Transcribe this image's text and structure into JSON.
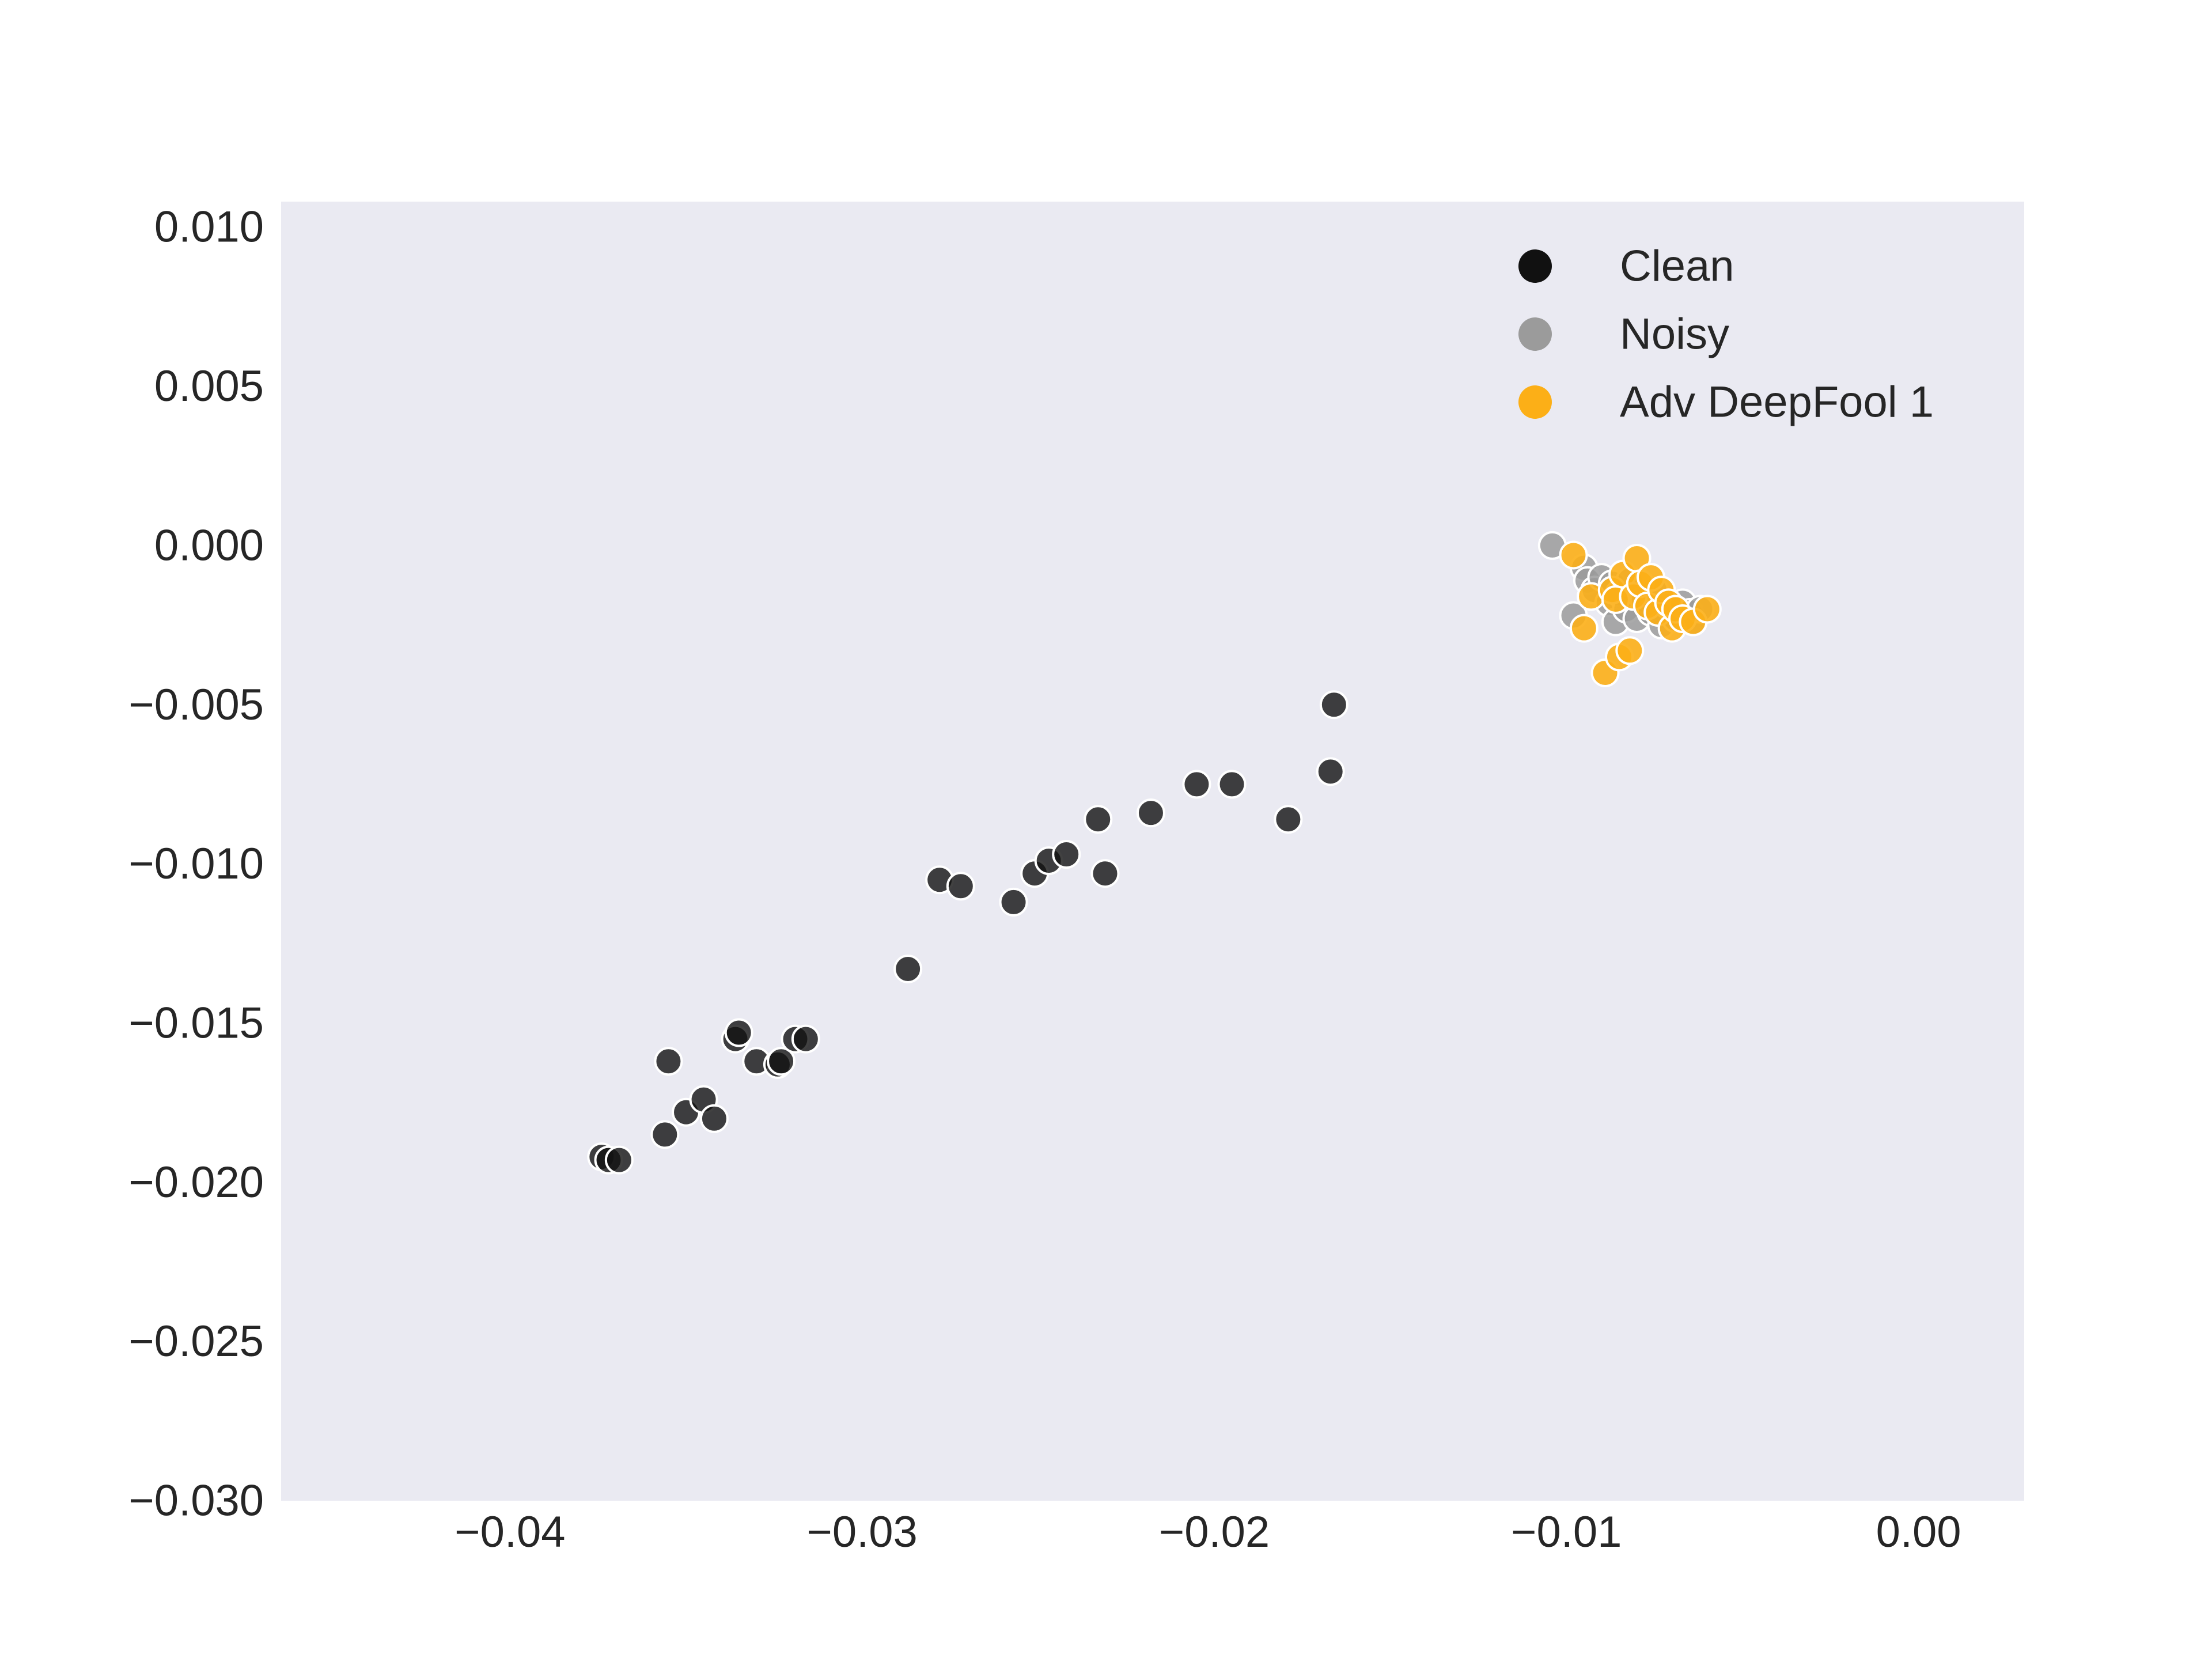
{
  "chart_data": {
    "type": "scatter",
    "title": "",
    "xlabel": "",
    "ylabel": "",
    "xlim": [
      -0.0465,
      0.003
    ],
    "ylim": [
      -0.03,
      0.0108
    ],
    "grid": false,
    "background": "#eaeaf2",
    "legend_position": "top-right",
    "x_ticks": [
      {
        "value": -0.04,
        "label": "−0.04"
      },
      {
        "value": -0.03,
        "label": "−0.03"
      },
      {
        "value": -0.02,
        "label": "−0.02"
      },
      {
        "value": -0.01,
        "label": "−0.01"
      },
      {
        "value": 0.0,
        "label": "0.00"
      }
    ],
    "y_ticks": [
      {
        "value": 0.01,
        "label": "0.010"
      },
      {
        "value": 0.005,
        "label": "0.005"
      },
      {
        "value": 0.0,
        "label": "0.000"
      },
      {
        "value": -0.005,
        "label": "−0.005"
      },
      {
        "value": -0.01,
        "label": "−0.010"
      },
      {
        "value": -0.015,
        "label": "−0.015"
      },
      {
        "value": -0.02,
        "label": "−0.020"
      },
      {
        "value": -0.025,
        "label": "−0.025"
      },
      {
        "value": -0.03,
        "label": "−0.030"
      }
    ],
    "series": [
      {
        "name": "Clean",
        "color": "#111111",
        "opacity": 0.8,
        "points": [
          [
            -0.0374,
            -0.0192
          ],
          [
            -0.0372,
            -0.0193
          ],
          [
            -0.0369,
            -0.0193
          ],
          [
            -0.0356,
            -0.0185
          ],
          [
            -0.0355,
            -0.0162
          ],
          [
            -0.035,
            -0.0178
          ],
          [
            -0.0345,
            -0.0174
          ],
          [
            -0.0342,
            -0.018
          ],
          [
            -0.0336,
            -0.0155
          ],
          [
            -0.0335,
            -0.0153
          ],
          [
            -0.033,
            -0.0162
          ],
          [
            -0.0324,
            -0.0163
          ],
          [
            -0.0323,
            -0.0162
          ],
          [
            -0.0319,
            -0.0155
          ],
          [
            -0.0316,
            -0.0155
          ],
          [
            -0.0287,
            -0.0133
          ],
          [
            -0.0278,
            -0.0105
          ],
          [
            -0.0272,
            -0.0107
          ],
          [
            -0.0257,
            -0.0112
          ],
          [
            -0.0251,
            -0.0103
          ],
          [
            -0.0247,
            -0.0099
          ],
          [
            -0.0242,
            -0.0097
          ],
          [
            -0.0233,
            -0.0086
          ],
          [
            -0.0231,
            -0.0103
          ],
          [
            -0.0218,
            -0.0084
          ],
          [
            -0.0205,
            -0.0075
          ],
          [
            -0.0195,
            -0.0075
          ],
          [
            -0.0179,
            -0.0086
          ],
          [
            -0.0167,
            -0.0071
          ],
          [
            -0.0166,
            -0.005
          ]
        ]
      },
      {
        "name": "Noisy",
        "color": "#9b9b9b",
        "opacity": 0.85,
        "points": [
          [
            -0.0104,
            0.0
          ],
          [
            -0.0098,
            -0.0022
          ],
          [
            -0.0095,
            -0.0007
          ],
          [
            -0.0094,
            -0.0011
          ],
          [
            -0.0092,
            -0.0014
          ],
          [
            -0.009,
            -0.001
          ],
          [
            -0.0088,
            -0.0018
          ],
          [
            -0.0087,
            -0.0012
          ],
          [
            -0.0086,
            -0.0024
          ],
          [
            -0.0085,
            -0.0015
          ],
          [
            -0.0083,
            -0.002
          ],
          [
            -0.0082,
            -0.0011
          ],
          [
            -0.008,
            -0.0023
          ],
          [
            -0.0078,
            -0.0017
          ],
          [
            -0.0076,
            -0.0021
          ],
          [
            -0.0075,
            -0.0014
          ],
          [
            -0.0073,
            -0.0025
          ],
          [
            -0.0071,
            -0.0019
          ],
          [
            -0.0069,
            -0.0023
          ],
          [
            -0.0067,
            -0.0018
          ],
          [
            -0.0065,
            -0.0021
          ],
          [
            -0.0064,
            -0.0024
          ],
          [
            -0.0062,
            -0.002
          ]
        ]
      },
      {
        "name": "Adv DeepFool 1",
        "color": "#fcaf17",
        "opacity": 0.9,
        "points": [
          [
            -0.0098,
            -0.0003
          ],
          [
            -0.0095,
            -0.0026
          ],
          [
            -0.0093,
            -0.0016
          ],
          [
            -0.0089,
            -0.004
          ],
          [
            -0.0087,
            -0.0014
          ],
          [
            -0.0086,
            -0.0017
          ],
          [
            -0.0085,
            -0.0035
          ],
          [
            -0.0084,
            -0.0009
          ],
          [
            -0.0082,
            -0.0033
          ],
          [
            -0.0081,
            -0.0016
          ],
          [
            -0.008,
            -0.0004
          ],
          [
            -0.0079,
            -0.0012
          ],
          [
            -0.0077,
            -0.0019
          ],
          [
            -0.0076,
            -0.001
          ],
          [
            -0.0074,
            -0.0021
          ],
          [
            -0.0073,
            -0.0014
          ],
          [
            -0.0071,
            -0.0018
          ],
          [
            -0.007,
            -0.0026
          ],
          [
            -0.0069,
            -0.002
          ],
          [
            -0.0067,
            -0.0023
          ],
          [
            -0.0064,
            -0.0024
          ],
          [
            -0.006,
            -0.002
          ]
        ]
      }
    ]
  }
}
